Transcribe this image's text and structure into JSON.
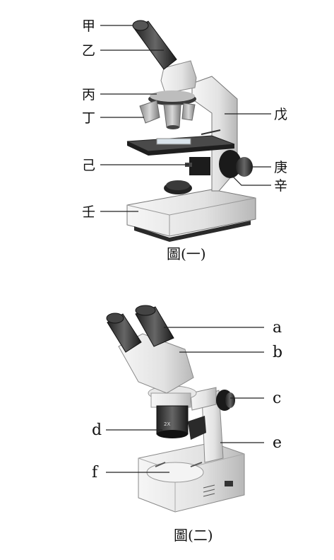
{
  "figure1": {
    "caption": "圖(一)",
    "labels": {
      "jia": "甲",
      "yi": "乙",
      "bing": "丙",
      "ding": "丁",
      "ji": "己",
      "ren": "壬",
      "wu": "戊",
      "geng": "庚",
      "xin": "辛"
    }
  },
  "figure2": {
    "caption": "圖(二)",
    "labels": {
      "a": "a",
      "b": "b",
      "c": "c",
      "d": "d",
      "e": "e",
      "f": "f"
    }
  }
}
